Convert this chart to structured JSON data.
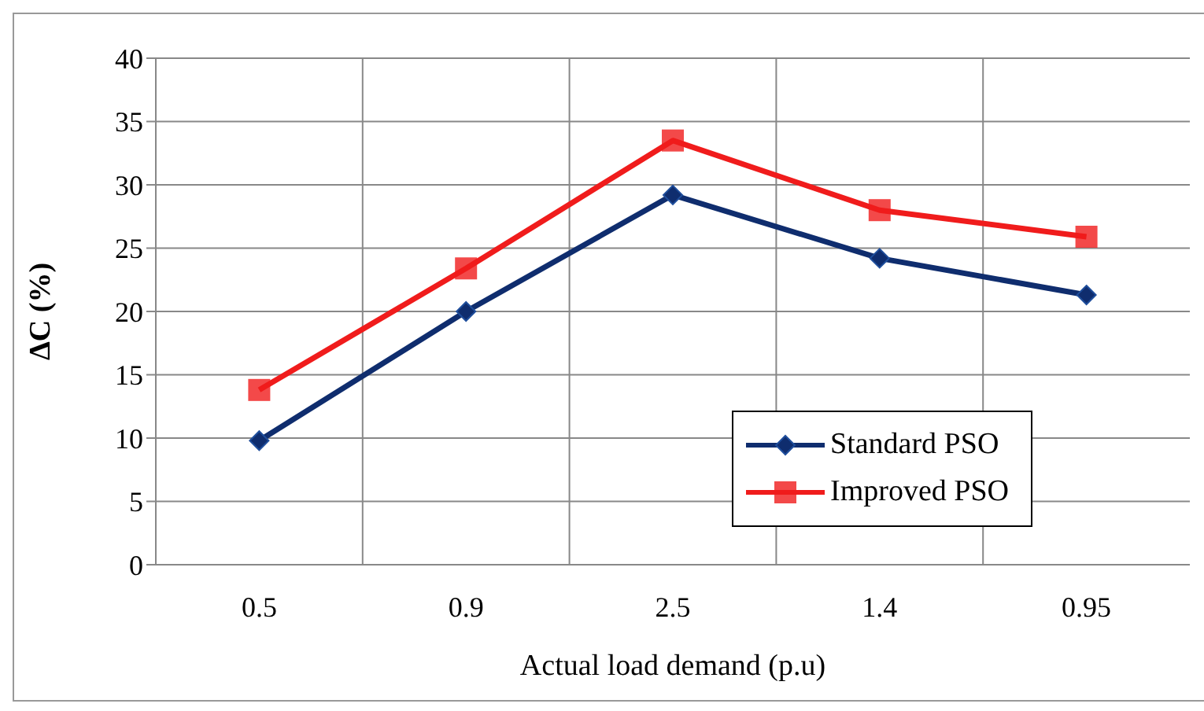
{
  "chart_data": {
    "type": "line",
    "xlabel": "Actual load demand (p.u)",
    "ylabel": "ΔC (%)",
    "categories": [
      "0.5",
      "0.9",
      "2.5",
      "1.4",
      "0.95"
    ],
    "series": [
      {
        "name": "Standard PSO",
        "color": "#0f2d6e",
        "marker": "diamond",
        "values": [
          9.8,
          20,
          29.2,
          24.2,
          21.3
        ]
      },
      {
        "name": "Improved PSO",
        "color": "#f01c1c",
        "marker": "square",
        "values": [
          13.8,
          23.4,
          33.5,
          28,
          25.9
        ]
      }
    ],
    "ylim": [
      0,
      40
    ],
    "yticks": [
      0,
      5,
      10,
      15,
      20,
      25,
      30,
      35,
      40
    ],
    "grid": true,
    "legend": "bottom right",
    "line_style": "solid"
  }
}
